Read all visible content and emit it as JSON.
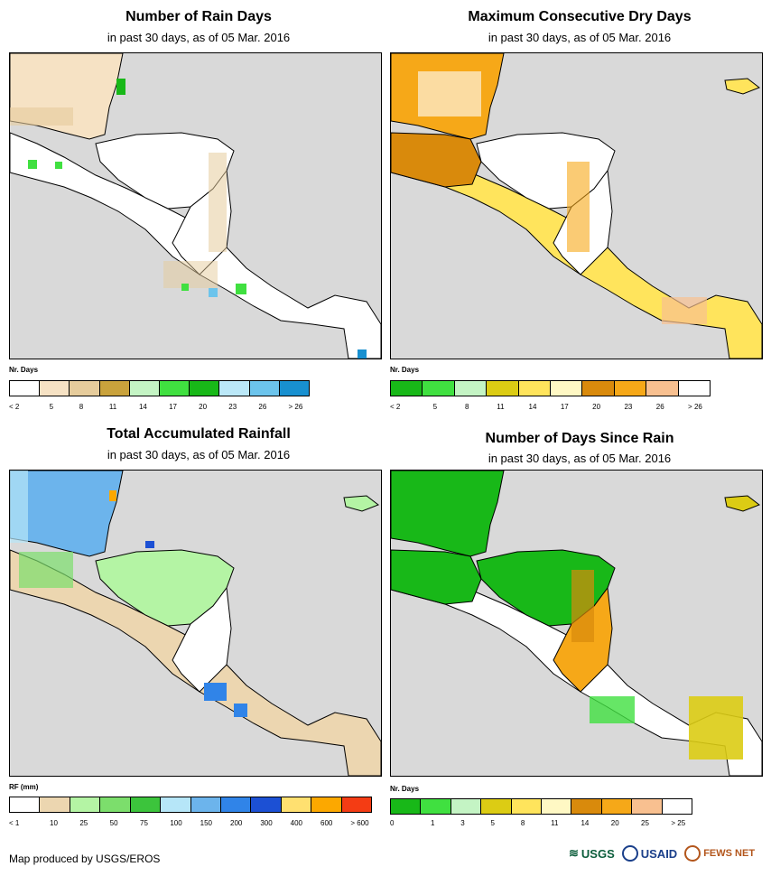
{
  "panels": [
    {
      "title": "Number of Rain Days",
      "subtitle": "in past 30 days, as of 05 Mar. 2016",
      "legend_title": "Nr. Days",
      "legend_colors": [
        "#ffffff",
        "#f6e2c4",
        "#e6cc9c",
        "#c9a23c",
        "#c4f4c4",
        "#40e040",
        "#18b818",
        "#bbe8f8",
        "#6cc4ec",
        "#1890d0"
      ],
      "legend_labels": [
        "< 2",
        "5",
        "8",
        "11",
        "14",
        "17",
        "20",
        "23",
        "26",
        "> 26"
      ]
    },
    {
      "title": "Maximum Consecutive Dry Days",
      "subtitle": "in past 30 days, as of 05 Mar. 2016",
      "legend_title": "Nr. Days",
      "legend_colors": [
        "#18b818",
        "#40e040",
        "#c4f4c4",
        "#dccc14",
        "#ffe45c",
        "#fff8c4",
        "#d98a0c",
        "#f6a818",
        "#f8c090",
        "#ffffff"
      ],
      "legend_labels": [
        "< 2",
        "5",
        "8",
        "11",
        "14",
        "17",
        "20",
        "23",
        "26",
        "> 26"
      ]
    },
    {
      "title": "Total Accumulated Rainfall",
      "subtitle": "in past 30 days, as of 05 Mar. 2016",
      "legend_title": "RF (mm)",
      "legend_colors": [
        "#ffffff",
        "#ecd6b0",
        "#b4f4a4",
        "#7cde6c",
        "#3cc43c",
        "#b6e6f8",
        "#6cb4ec",
        "#3084e8",
        "#1c50d4",
        "#ffe070",
        "#fca800",
        "#f43c14"
      ],
      "legend_labels": [
        "< 1",
        "10",
        "25",
        "50",
        "75",
        "100",
        "150",
        "200",
        "300",
        "400",
        "600",
        "> 600"
      ]
    },
    {
      "title": "Number of Days Since Rain",
      "subtitle": "in past 30 days, as of 05 Mar. 2016",
      "legend_title": "Nr. Days",
      "legend_colors": [
        "#18b818",
        "#40e040",
        "#c4f4c4",
        "#dccc14",
        "#ffe45c",
        "#fff8c4",
        "#d98a0c",
        "#f6a818",
        "#f8c090",
        "#ffffff"
      ],
      "legend_labels": [
        "0",
        "1",
        "3",
        "5",
        "8",
        "11",
        "14",
        "20",
        "25",
        "> 25"
      ]
    }
  ],
  "credit": "Map produced by USGS/EROS",
  "logos": [
    "USGS",
    "USAID",
    "FEWS NET"
  ]
}
